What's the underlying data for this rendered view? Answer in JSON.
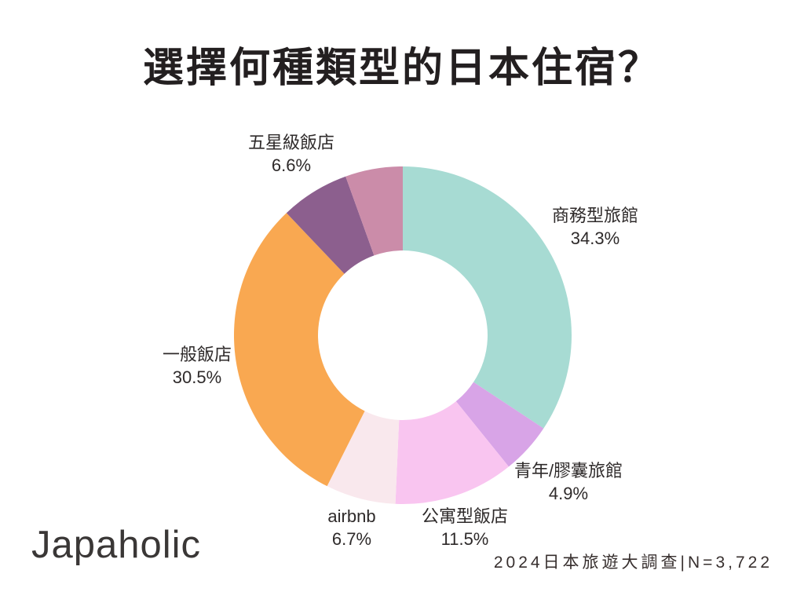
{
  "title": "選擇何種類型的日本住宿？",
  "logo": "Japaholic",
  "source": "2024日本旅遊大調查|N=3,722",
  "chart_data": {
    "type": "pie",
    "subtype": "donut",
    "title": "選擇何種類型的日本住宿？",
    "unit": "%",
    "direction": "clockwise",
    "start_angle_deg": 0,
    "inner_radius_ratio": 0.5,
    "legend": "none",
    "background": "#ffffff",
    "slices": [
      {
        "label": "商務型旅館",
        "value": 34.3,
        "color": "#a7dbd3"
      },
      {
        "label": "青年/膠囊旅館",
        "value": 4.9,
        "color": "#d8a4e7"
      },
      {
        "label": "公寓型飯店",
        "value": 11.5,
        "color": "#f9c5f0"
      },
      {
        "label": "airbnb",
        "value": 6.7,
        "color": "#f9e8ed"
      },
      {
        "label": "一般飯店",
        "value": 30.5,
        "color": "#f9a851"
      },
      {
        "label": "五星級飯店",
        "value": 6.6,
        "color": "#8c5f8e"
      },
      {
        "label": "",
        "value": 5.5,
        "color": "#cb8ca9"
      }
    ]
  }
}
